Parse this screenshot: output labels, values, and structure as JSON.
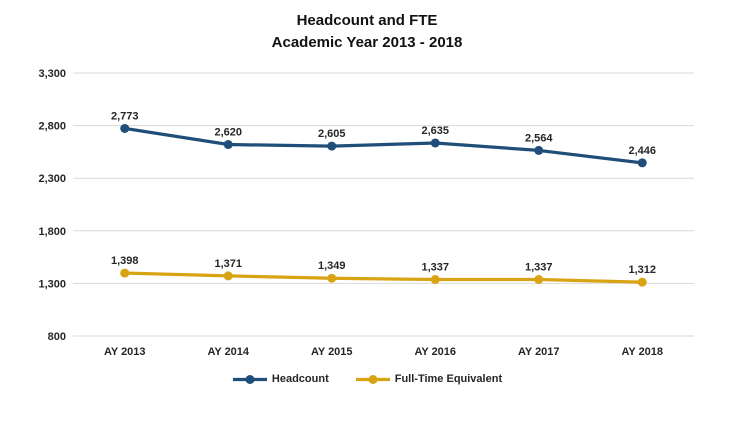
{
  "title": {
    "line1": "Headcount and FTE",
    "line2": "Academic Year 2013 - 2018"
  },
  "chart_data": {
    "type": "line",
    "categories": [
      "AY 2013",
      "AY 2014",
      "AY 2015",
      "AY 2016",
      "AY 2017",
      "AY 2018"
    ],
    "series": [
      {
        "name": "Headcount",
        "color": "#1F4E79",
        "values": [
          2773,
          2620,
          2605,
          2635,
          2564,
          2446
        ]
      },
      {
        "name": "Full-Time Equivalent",
        "color": "#D9A413",
        "values": [
          1398,
          1371,
          1349,
          1337,
          1337,
          1312
        ]
      }
    ],
    "title": "Headcount and FTE Academic Year 2013 - 2018",
    "xlabel": "",
    "ylabel": "",
    "ylim": [
      800,
      3300
    ],
    "y_ticks": [
      3300,
      2800,
      2300,
      1800,
      1300,
      800
    ],
    "y_tick_labels": [
      "3,300",
      "2,800",
      "2,300",
      "1,800",
      "1,300",
      "800"
    ],
    "data_labels": [
      "2,773",
      "2,620",
      "2,605",
      "2,635",
      "2,564",
      "2,446",
      "1,398",
      "1,371",
      "1,349",
      "1,337",
      "1,337",
      "1,312"
    ],
    "grid": true,
    "legend_position": "bottom",
    "gridline_color": "#D9D9D9",
    "text_color": "#262626"
  }
}
